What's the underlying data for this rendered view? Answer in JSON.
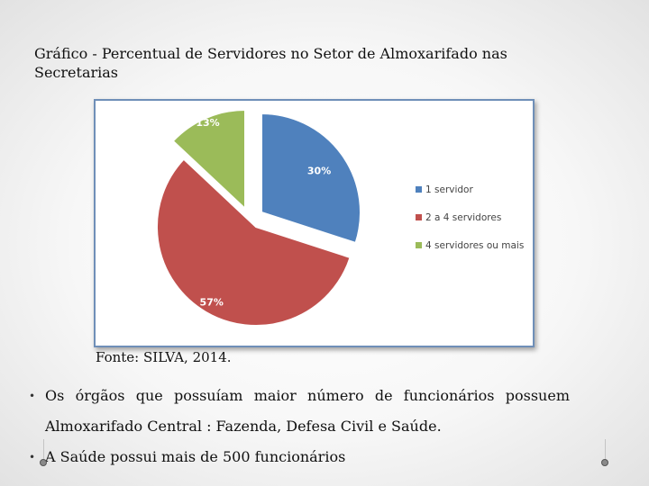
{
  "slide": {
    "title": "Gráfico - Percentual de Servidores no Setor de Almoxarifado nas Secretarias",
    "source": "Fonte: SILVA, 2014.",
    "bullets": [
      {
        "line1": "Os órgãos que possuíam maior número de funcionários possuem",
        "line2": "Almoxarifado Central : Fazenda, Defesa Civil e Saúde."
      },
      {
        "line1": "A Saúde possui mais de 500 funcionários"
      }
    ],
    "bullet_glyph": "•"
  },
  "chart_data": {
    "type": "pie",
    "title": "",
    "legend_position": "right",
    "slices": [
      {
        "label": "1 servidor",
        "value": 30,
        "label_text": "30%",
        "color": "#4f81bd"
      },
      {
        "label": "2 a 4 servidores",
        "value": 57,
        "label_text": "57%",
        "color": "#c0504d"
      },
      {
        "label": "4 servidores ou mais",
        "value": 13,
        "label_text": "13%",
        "color": "#9bbb59"
      }
    ]
  }
}
